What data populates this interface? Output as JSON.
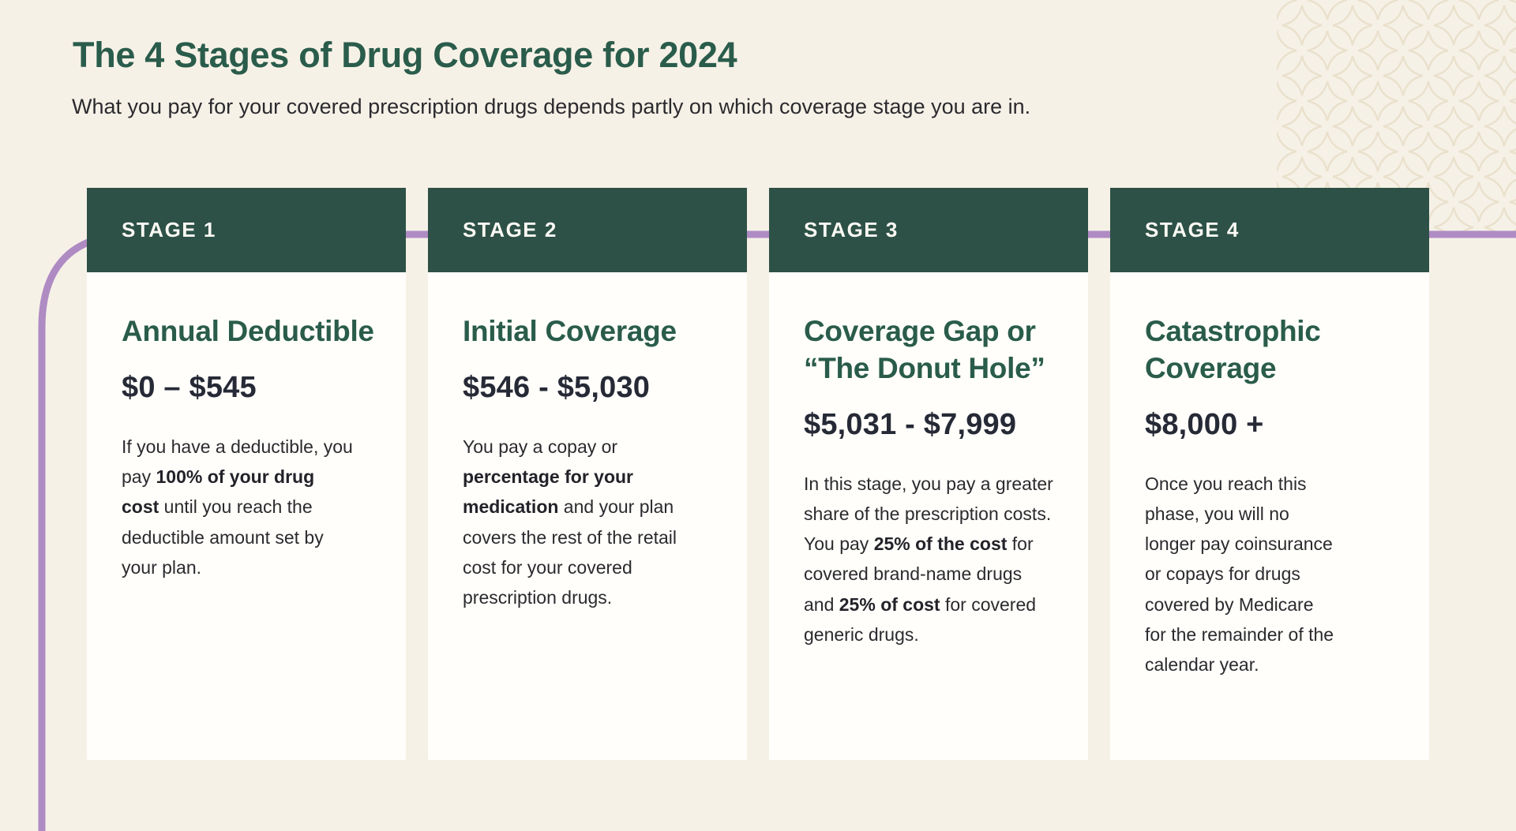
{
  "page": {
    "title": "The 4 Stages of Drug Coverage for 2024",
    "subtitle": "What you pay for your covered prescription drugs depends partly on which coverage stage you are in."
  },
  "colors": {
    "background": "#f6f1e7",
    "card_background": "#fffefa",
    "header_green": "#2d5147",
    "title_green": "#2a5c4b",
    "text_dark": "#2b2a2e",
    "range_dark": "#262a36",
    "connector_purple": "#af8bc3",
    "pattern_beige": "#eae1cd"
  },
  "stages": [
    {
      "label": "STAGE 1",
      "title": "Annual Deductible",
      "range": "$0 – $545",
      "body": [
        {
          "text": "If you have a deductible, you pay ",
          "bold": false
        },
        {
          "text": "100% of your drug cost",
          "bold": true
        },
        {
          "text": " until you reach the deductible amount set by your plan.",
          "bold": false
        }
      ]
    },
    {
      "label": "STAGE 2",
      "title": "Initial Coverage",
      "range": "$546 - $5,030",
      "body": [
        {
          "text": "You pay a copay or ",
          "bold": false
        },
        {
          "text": "percentage for your medication",
          "bold": true
        },
        {
          "text": " and your plan covers the rest of the retail cost for your covered prescription drugs.",
          "bold": false
        }
      ]
    },
    {
      "label": "STAGE 3",
      "title": "Coverage Gap or “The Donut Hole”",
      "range": "$5,031 - $7,999",
      "body": [
        {
          "text": "In this stage, you pay a greater share of the prescription costs. You pay ",
          "bold": false
        },
        {
          "text": "25% of the cost",
          "bold": true
        },
        {
          "text": " for covered brand-name drugs and ",
          "bold": false
        },
        {
          "text": "25% of cost",
          "bold": true
        },
        {
          "text": " for covered generic drugs.",
          "bold": false
        }
      ]
    },
    {
      "label": "STAGE 4",
      "title": "Catastrophic Coverage",
      "range": "$8,000 +",
      "body": [
        {
          "text": "Once you reach this phase, you will no longer pay coinsurance or copays for drugs covered by Medicare for the remainder of the calendar year.",
          "bold": false
        }
      ]
    }
  ]
}
